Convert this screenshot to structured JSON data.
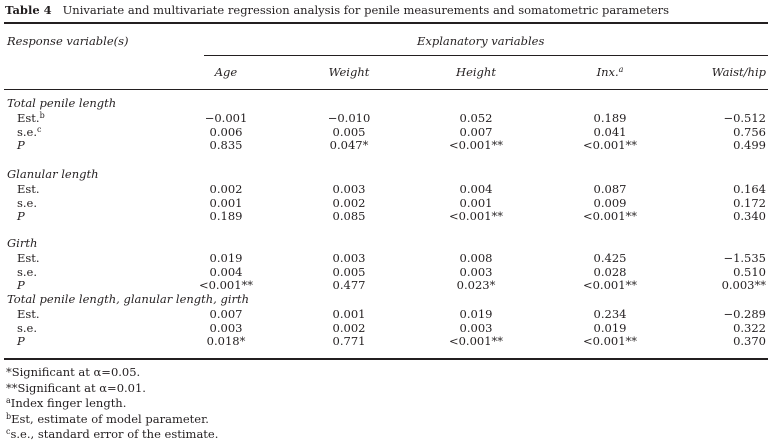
{
  "caption": {
    "label": "Table 4",
    "text": "Univariate and multivariate regression analysis for penile measurements and somatometric parameters"
  },
  "header": {
    "response": "Response variable(s)",
    "explanatory": "Explanatory variables",
    "columns": [
      {
        "label": "Age",
        "sup": ""
      },
      {
        "label": "Weight",
        "sup": ""
      },
      {
        "label": "Height",
        "sup": ""
      },
      {
        "label": "Inx.",
        "sup": "a"
      },
      {
        "label": "Waist/hip",
        "sup": ""
      }
    ]
  },
  "groups": [
    {
      "title": "Total penile length",
      "rows": [
        {
          "label": "Est.",
          "sup": "b",
          "italic": false,
          "values": [
            "−0.001",
            "−0.010",
            "0.052",
            "0.189",
            "−0.512"
          ]
        },
        {
          "label": "s.e.",
          "sup": "c",
          "italic": false,
          "values": [
            "0.006",
            "0.005",
            "0.007",
            "0.041",
            "0.756"
          ]
        },
        {
          "label": "P",
          "sup": "",
          "italic": true,
          "values": [
            "0.835",
            "0.047*",
            "<0.001**",
            "<0.001**",
            "0.499"
          ]
        }
      ]
    },
    {
      "title": "Glanular length",
      "rows": [
        {
          "label": "Est.",
          "sup": "",
          "italic": false,
          "values": [
            "0.002",
            "0.003",
            "0.004",
            "0.087",
            "0.164"
          ]
        },
        {
          "label": "s.e.",
          "sup": "",
          "italic": false,
          "values": [
            "0.001",
            "0.002",
            "0.001",
            "0.009",
            "0.172"
          ]
        },
        {
          "label": "P",
          "sup": "",
          "italic": true,
          "values": [
            "0.189",
            "0.085",
            "<0.001**",
            "<0.001**",
            "0.340"
          ]
        }
      ]
    },
    {
      "title": "Girth",
      "rows": [
        {
          "label": "Est.",
          "sup": "",
          "italic": false,
          "values": [
            "0.019",
            "0.003",
            "0.008",
            "0.425",
            "−1.535"
          ]
        },
        {
          "label": "s.e.",
          "sup": "",
          "italic": false,
          "values": [
            "0.004",
            "0.005",
            "0.003",
            "0.028",
            "0.510"
          ]
        },
        {
          "label": "P",
          "sup": "",
          "italic": true,
          "values": [
            "<0.001**",
            "0.477",
            "0.023*",
            "<0.001**",
            "0.003**"
          ]
        }
      ]
    },
    {
      "title": "Total penile length, glanular length, girth",
      "rows": [
        {
          "label": "Est.",
          "sup": "",
          "italic": false,
          "values": [
            "0.007",
            "0.001",
            "0.019",
            "0.234",
            "−0.289"
          ]
        },
        {
          "label": "s.e.",
          "sup": "",
          "italic": false,
          "values": [
            "0.003",
            "0.002",
            "0.003",
            "0.019",
            "0.322"
          ]
        },
        {
          "label": "P",
          "sup": "",
          "italic": true,
          "values": [
            "0.018*",
            "0.771",
            "<0.001**",
            "<0.001**",
            "0.370"
          ]
        }
      ]
    }
  ],
  "footnotes": [
    {
      "sup": "",
      "text": "*Significant at α=0.05."
    },
    {
      "sup": "",
      "text": "**Significant at α=0.01."
    },
    {
      "sup": "a",
      "text": "Index finger length."
    },
    {
      "sup": "b",
      "text": "Est, estimate of model parameter."
    },
    {
      "sup": "c",
      "text": "s.e., standard error of the estimate."
    }
  ]
}
